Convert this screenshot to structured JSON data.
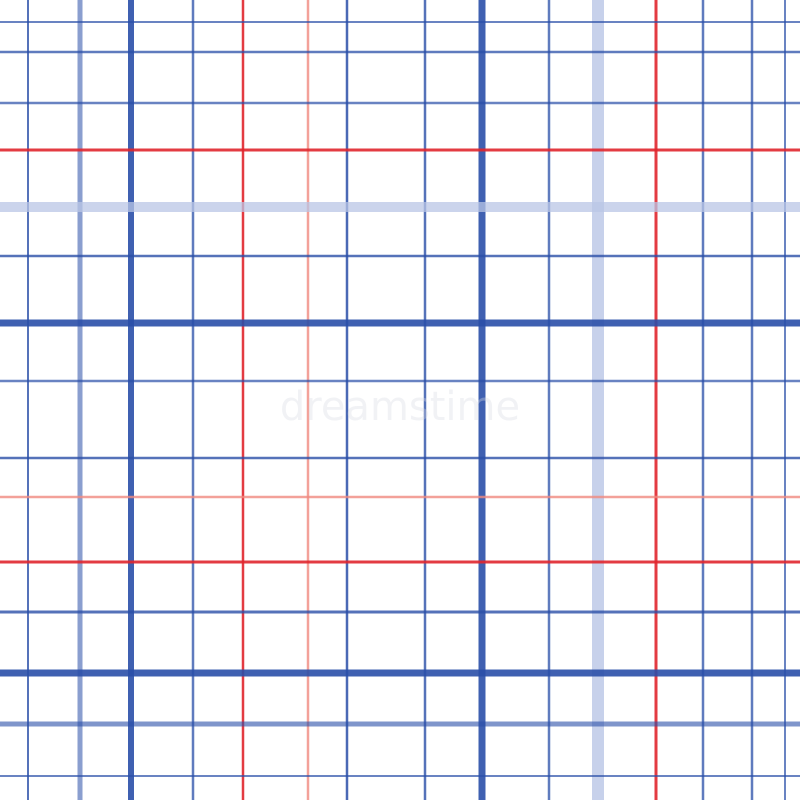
{
  "pattern": {
    "kind": "plaid",
    "background": "#ffffff",
    "colors": {
      "blue": "#2a4fa8",
      "light_blue": "#b9c6e6",
      "red": "#e0262e",
      "light_red": "#f08a80"
    }
  },
  "watermark": "dreamstime"
}
